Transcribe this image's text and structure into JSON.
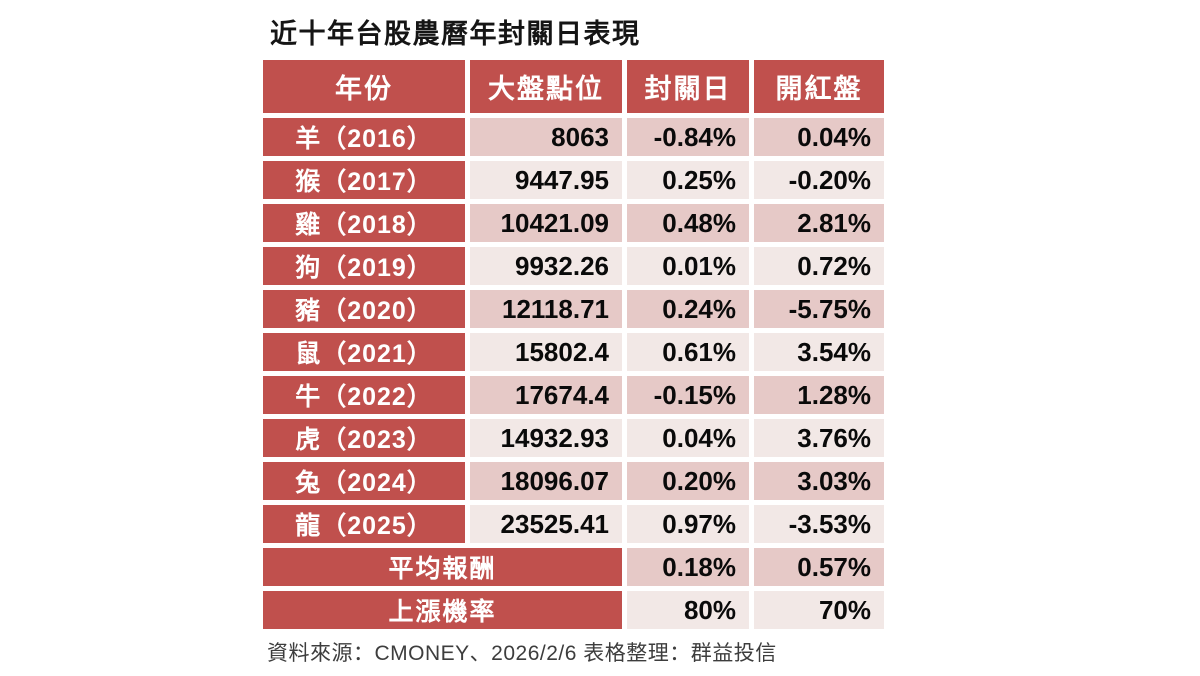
{
  "colors": {
    "header_red": "#C0504D",
    "band_dark": "#E6C9C7",
    "band_light": "#F2E8E6"
  },
  "chart_data": {
    "type": "table",
    "title": "近十年台股農曆年封關日表現",
    "columns": [
      "年份",
      "大盤點位",
      "封關日",
      "開紅盤"
    ],
    "rows": [
      {
        "year": "羊（2016）",
        "points": "8063",
        "close_pct": "-0.84%",
        "open_pct": "0.04%"
      },
      {
        "year": "猴（2017）",
        "points": "9447.95",
        "close_pct": "0.25%",
        "open_pct": "-0.20%"
      },
      {
        "year": "雞（2018）",
        "points": "10421.09",
        "close_pct": "0.48%",
        "open_pct": "2.81%"
      },
      {
        "year": "狗（2019）",
        "points": "9932.26",
        "close_pct": "0.01%",
        "open_pct": "0.72%"
      },
      {
        "year": "豬（2020）",
        "points": "12118.71",
        "close_pct": "0.24%",
        "open_pct": "-5.75%"
      },
      {
        "year": "鼠（2021）",
        "points": "15802.4",
        "close_pct": "0.61%",
        "open_pct": "3.54%"
      },
      {
        "year": "牛（2022）",
        "points": "17674.4",
        "close_pct": "-0.15%",
        "open_pct": "1.28%"
      },
      {
        "year": "虎（2023）",
        "points": "14932.93",
        "close_pct": "0.04%",
        "open_pct": "3.76%"
      },
      {
        "year": "兔（2024）",
        "points": "18096.07",
        "close_pct": "0.20%",
        "open_pct": "3.03%"
      },
      {
        "year": "龍（2025）",
        "points": "23525.41",
        "close_pct": "0.97%",
        "open_pct": "-3.53%"
      }
    ],
    "summary": [
      {
        "label": "平均報酬",
        "close_pct": "0.18%",
        "open_pct": "0.57%"
      },
      {
        "label": "上漲機率",
        "close_pct": "80%",
        "open_pct": "70%"
      }
    ],
    "source_note": "資料來源：CMONEY、2026/2/6 表格整理：群益投信"
  }
}
